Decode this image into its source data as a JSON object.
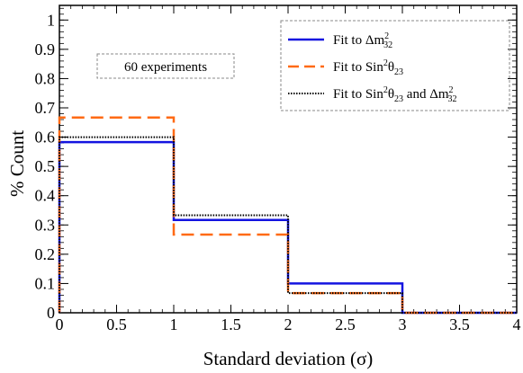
{
  "chart_data": {
    "type": "line",
    "step": true,
    "xlabel": "Standard deviation (σ)",
    "ylabel": "% Count",
    "xlim": [
      0,
      4
    ],
    "ylim": [
      0,
      1.05
    ],
    "x_ticks": [
      "0",
      "0.5",
      "1",
      "1.5",
      "2",
      "2.5",
      "3",
      "3.5",
      "4"
    ],
    "y_ticks": [
      "0",
      "0.1",
      "0.2",
      "0.3",
      "0.4",
      "0.5",
      "0.6",
      "0.7",
      "0.8",
      "0.9",
      "1"
    ],
    "bin_edges": [
      0,
      1,
      2,
      3,
      4
    ],
    "grid": false,
    "legend_position": "top-right",
    "annotation": "60 experiments",
    "series": [
      {
        "id": "dm32",
        "name_parts": {
          "prefix": "Fit to Δm",
          "sup": "2",
          "sub": "32"
        },
        "color": "#1414e0",
        "style": "solid",
        "values": [
          0.583,
          0.317,
          0.1,
          0.0
        ]
      },
      {
        "id": "sin2",
        "name_parts": {
          "prefix": "Fit to Sin",
          "sup": "2",
          "mid": "θ",
          "sub": "23"
        },
        "color": "#ff6a14",
        "style": "dashed",
        "values": [
          0.667,
          0.267,
          0.067,
          0.0
        ]
      },
      {
        "id": "both",
        "name_parts": {
          "prefix": "Fit to Sin",
          "sup": "2",
          "mid": "θ",
          "sub": "23",
          "joiner": " and Δm",
          "sup2": "2",
          "sub2": "32"
        },
        "color": "#000000",
        "style": "dotted",
        "values": [
          0.6,
          0.333,
          0.067,
          0.0
        ]
      }
    ]
  }
}
